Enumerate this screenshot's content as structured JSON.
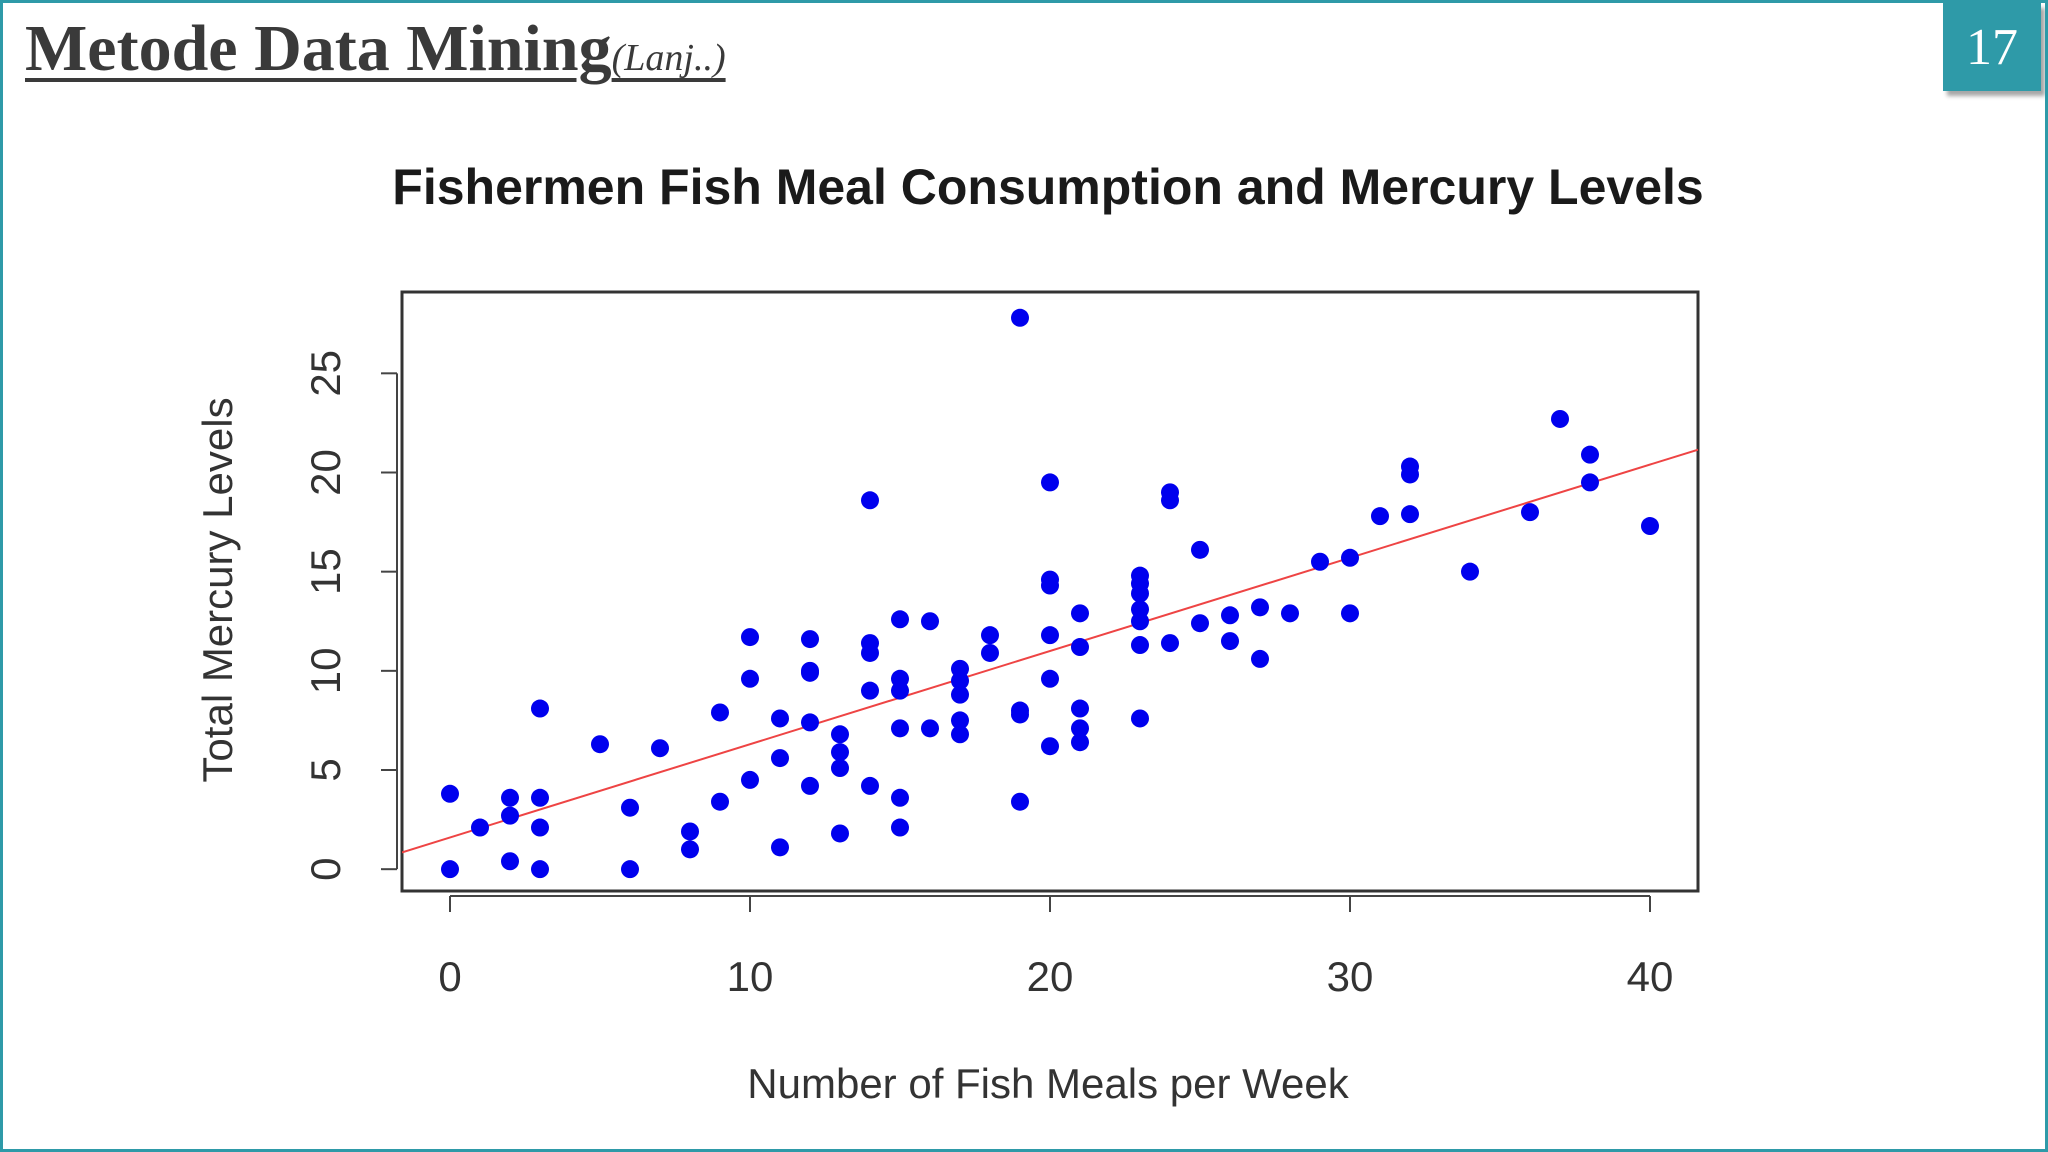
{
  "slide": {
    "title": "Metode Data Mining",
    "subtitle": "(Lanj..)",
    "page_number": "17"
  },
  "chart_data": {
    "type": "scatter",
    "title": "Fishermen Fish Meal Consumption and Mercury Levels",
    "xlabel": "Number of Fish Meals per Week",
    "ylabel": "Total Mercury Levels",
    "xlim": [
      -1.6,
      41.6
    ],
    "ylim": [
      -1.1,
      29.1
    ],
    "xticks": [
      0,
      10,
      20,
      30,
      40
    ],
    "yticks": [
      0,
      5,
      10,
      15,
      20,
      25
    ],
    "grid": false,
    "point_color": "#0000ee",
    "fit_line_color": "#ee4444",
    "fit_line": {
      "intercept": 1.6,
      "slope": 0.47
    },
    "points": [
      {
        "x": 0,
        "y": 3.8
      },
      {
        "x": 0,
        "y": 0
      },
      {
        "x": 1,
        "y": 2.1
      },
      {
        "x": 2,
        "y": 3.6
      },
      {
        "x": 2,
        "y": 2.7
      },
      {
        "x": 2,
        "y": 0.4
      },
      {
        "x": 3,
        "y": 8.1
      },
      {
        "x": 3,
        "y": 3.6
      },
      {
        "x": 3,
        "y": 2.1
      },
      {
        "x": 3,
        "y": 0
      },
      {
        "x": 5,
        "y": 6.3
      },
      {
        "x": 6,
        "y": 3.1
      },
      {
        "x": 6,
        "y": 0
      },
      {
        "x": 7,
        "y": 6.1
      },
      {
        "x": 8,
        "y": 1.9
      },
      {
        "x": 8,
        "y": 1.0
      },
      {
        "x": 9,
        "y": 7.9
      },
      {
        "x": 9,
        "y": 3.4
      },
      {
        "x": 10,
        "y": 11.7
      },
      {
        "x": 10,
        "y": 9.6
      },
      {
        "x": 10,
        "y": 4.5
      },
      {
        "x": 11,
        "y": 7.6
      },
      {
        "x": 11,
        "y": 5.6
      },
      {
        "x": 11,
        "y": 1.1
      },
      {
        "x": 12,
        "y": 11.6
      },
      {
        "x": 12,
        "y": 10.0
      },
      {
        "x": 12,
        "y": 9.9
      },
      {
        "x": 12,
        "y": 7.4
      },
      {
        "x": 12,
        "y": 4.2
      },
      {
        "x": 13,
        "y": 6.8
      },
      {
        "x": 13,
        "y": 5.9
      },
      {
        "x": 13,
        "y": 5.1
      },
      {
        "x": 13,
        "y": 1.8
      },
      {
        "x": 14,
        "y": 18.6
      },
      {
        "x": 14,
        "y": 11.4
      },
      {
        "x": 14,
        "y": 10.9
      },
      {
        "x": 14,
        "y": 9.0
      },
      {
        "x": 14,
        "y": 4.2
      },
      {
        "x": 15,
        "y": 12.6
      },
      {
        "x": 15,
        "y": 9.6
      },
      {
        "x": 15,
        "y": 9.0
      },
      {
        "x": 15,
        "y": 7.1
      },
      {
        "x": 15,
        "y": 3.6
      },
      {
        "x": 15,
        "y": 2.1
      },
      {
        "x": 16,
        "y": 12.5
      },
      {
        "x": 16,
        "y": 7.1
      },
      {
        "x": 17,
        "y": 10.1
      },
      {
        "x": 17,
        "y": 9.5
      },
      {
        "x": 17,
        "y": 8.8
      },
      {
        "x": 17,
        "y": 7.5
      },
      {
        "x": 17,
        "y": 6.8
      },
      {
        "x": 18,
        "y": 11.8
      },
      {
        "x": 18,
        "y": 10.9
      },
      {
        "x": 19,
        "y": 27.8
      },
      {
        "x": 19,
        "y": 8.0
      },
      {
        "x": 19,
        "y": 7.8
      },
      {
        "x": 19,
        "y": 3.4
      },
      {
        "x": 20,
        "y": 19.5
      },
      {
        "x": 20,
        "y": 14.6
      },
      {
        "x": 20,
        "y": 14.3
      },
      {
        "x": 20,
        "y": 11.8
      },
      {
        "x": 20,
        "y": 9.6
      },
      {
        "x": 20,
        "y": 6.2
      },
      {
        "x": 21,
        "y": 12.9
      },
      {
        "x": 21,
        "y": 11.2
      },
      {
        "x": 21,
        "y": 8.1
      },
      {
        "x": 21,
        "y": 7.1
      },
      {
        "x": 21,
        "y": 6.4
      },
      {
        "x": 23,
        "y": 14.8
      },
      {
        "x": 23,
        "y": 14.4
      },
      {
        "x": 23,
        "y": 13.9
      },
      {
        "x": 23,
        "y": 13.1
      },
      {
        "x": 23,
        "y": 12.5
      },
      {
        "x": 23,
        "y": 11.3
      },
      {
        "x": 23,
        "y": 7.6
      },
      {
        "x": 24,
        "y": 19.0
      },
      {
        "x": 24,
        "y": 18.6
      },
      {
        "x": 24,
        "y": 11.4
      },
      {
        "x": 25,
        "y": 16.1
      },
      {
        "x": 25,
        "y": 12.4
      },
      {
        "x": 26,
        "y": 12.8
      },
      {
        "x": 26,
        "y": 11.5
      },
      {
        "x": 27,
        "y": 13.2
      },
      {
        "x": 27,
        "y": 10.6
      },
      {
        "x": 28,
        "y": 12.9
      },
      {
        "x": 29,
        "y": 15.5
      },
      {
        "x": 30,
        "y": 15.7
      },
      {
        "x": 30,
        "y": 12.9
      },
      {
        "x": 31,
        "y": 17.8
      },
      {
        "x": 32,
        "y": 20.3
      },
      {
        "x": 32,
        "y": 19.9
      },
      {
        "x": 32,
        "y": 17.9
      },
      {
        "x": 34,
        "y": 15.0
      },
      {
        "x": 36,
        "y": 18.0
      },
      {
        "x": 37,
        "y": 22.7
      },
      {
        "x": 38,
        "y": 20.9
      },
      {
        "x": 38,
        "y": 19.5
      },
      {
        "x": 40,
        "y": 17.3
      }
    ]
  }
}
